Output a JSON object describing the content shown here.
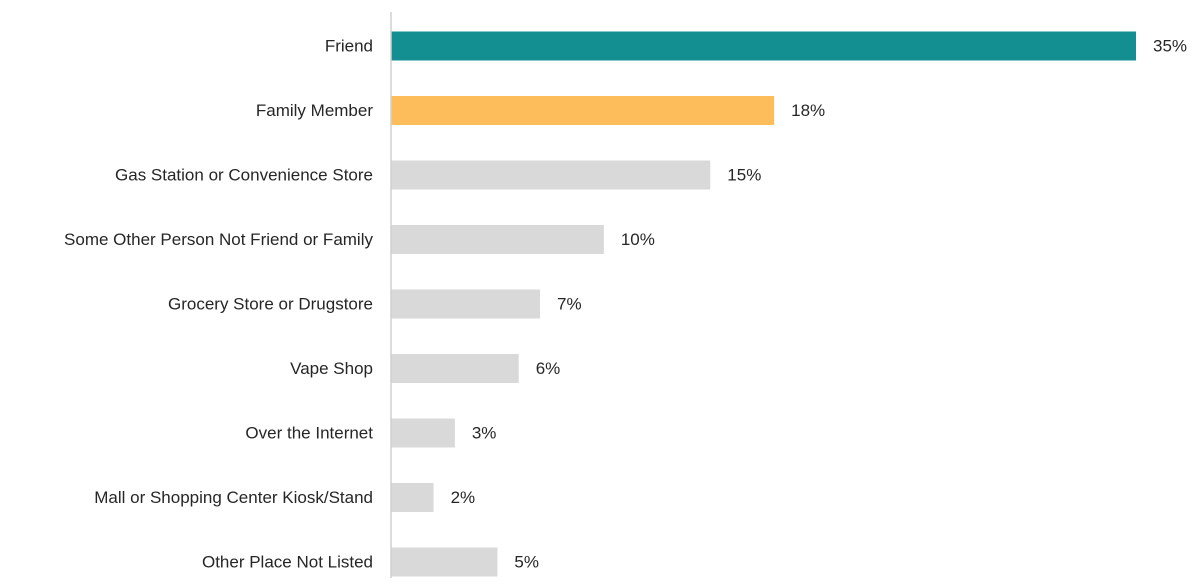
{
  "chart_data": {
    "type": "bar",
    "orientation": "horizontal",
    "categories": [
      "Friend",
      "Family Member",
      "Gas Station or Convenience Store",
      "Some Other Person Not Friend or Family",
      "Grocery Store or Drugstore",
      "Vape Shop",
      "Over the Internet",
      "Mall or Shopping Center Kiosk/Stand",
      "Other Place Not Listed"
    ],
    "values": [
      35,
      18,
      15,
      10,
      7,
      6,
      3,
      2,
      5
    ],
    "value_labels": [
      "35%",
      "18%",
      "15%",
      "10%",
      "7%",
      "6%",
      "3%",
      "2%",
      "5%"
    ],
    "unit": "%",
    "xlim": [
      0,
      35
    ],
    "grid": false,
    "legend": "none",
    "colors": [
      "#138f91",
      "#fdbd5b",
      "#d9d9d9",
      "#d9d9d9",
      "#d9d9d9",
      "#d9d9d9",
      "#d9d9d9",
      "#d9d9d9",
      "#d9d9d9"
    ],
    "axis_color": "#d0d0d0"
  }
}
